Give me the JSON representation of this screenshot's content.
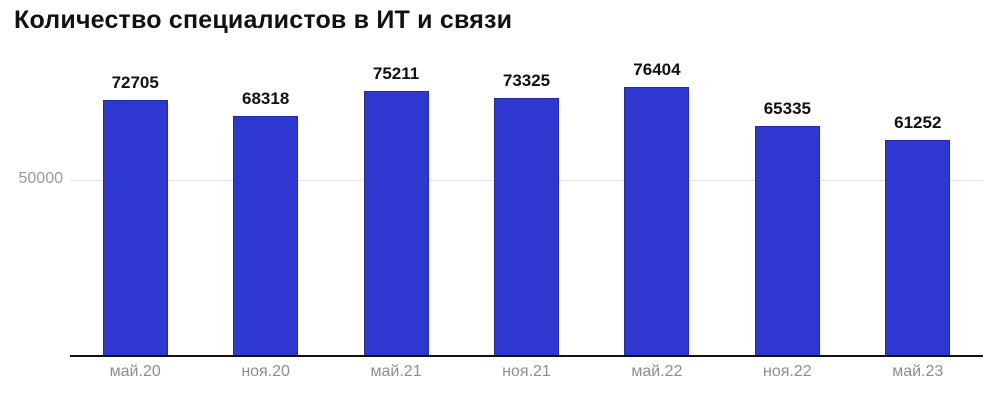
{
  "title": "Количество специалистов в ИТ и связи",
  "colors": {
    "bar_fill": "#2e38d1",
    "bar_border": "#232a9e",
    "axis": "#111111",
    "gridline": "#e3e3e3",
    "tick_label": "#9a9a9a",
    "category_label": "#8e8e8e",
    "value_label": "#111111",
    "background": "#ffffff"
  },
  "y_axis": {
    "tick_labels": [
      "50000"
    ]
  },
  "chart_data": {
    "type": "bar",
    "title": "Количество специалистов в ИТ и связи",
    "categories": [
      "май.20",
      "ноя.20",
      "май.21",
      "ноя.21",
      "май.22",
      "ноя.22",
      "май.23"
    ],
    "values": [
      72705,
      68318,
      75211,
      73325,
      76404,
      65335,
      61252
    ],
    "xlabel": "",
    "ylabel": "",
    "ylim": [
      0,
      87000
    ],
    "yticks_shown": [
      50000
    ],
    "grid": "single horizontal gridline at 50000",
    "legend": "none",
    "bar_color": "#2e38d1",
    "value_labels_above_bars": true
  }
}
